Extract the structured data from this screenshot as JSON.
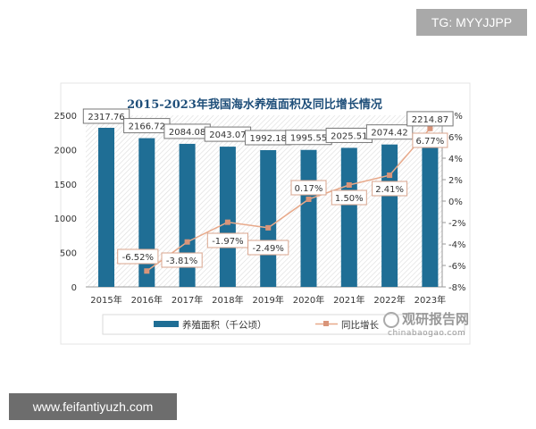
{
  "watermarks": {
    "top_right": "TG: MYYJJPP",
    "bottom_left": "www.feifantiyuzh.com"
  },
  "logo": {
    "name": "观研报告网",
    "url_text": "chinabaogao.com"
  },
  "colors": {
    "bar": "#1f6e95",
    "line": "#e8a98a",
    "marker": "#d9957a",
    "title": "#1f4f7a"
  },
  "chart_data": {
    "type": "bar+line",
    "title": "2015-2023年我国海水养殖面积及同比增长情况",
    "categories": [
      "2015年",
      "2016年",
      "2017年",
      "2018年",
      "2019年",
      "2020年",
      "2021年",
      "2022年",
      "2023年"
    ],
    "series": [
      {
        "name": "养殖面积（千公顷）",
        "type": "bar",
        "axis": "left",
        "values": [
          2317.76,
          2166.72,
          2084.08,
          2043.07,
          1992.18,
          1995.55,
          2025.51,
          2074.42,
          2214.87
        ],
        "labels": [
          "2317.76",
          "2166.72",
          "2084.08",
          "2043.07",
          "1992.18",
          "1995.55",
          "2025.51",
          "2074.42",
          "2214.87"
        ]
      },
      {
        "name": "同比增长",
        "type": "line",
        "axis": "right",
        "values": [
          null,
          -6.52,
          -3.81,
          -1.97,
          -2.49,
          0.17,
          1.5,
          2.41,
          6.77
        ],
        "labels": [
          "",
          "-6.52%",
          "-3.81%",
          "-1.97%",
          "-2.49%",
          "0.17%",
          "1.50%",
          "2.41%",
          "6.77%"
        ]
      }
    ],
    "y_left": {
      "lim": [
        0,
        2500
      ],
      "ticks": [
        "0",
        "500",
        "1000",
        "1500",
        "2000",
        "2500"
      ]
    },
    "y_right": {
      "lim": [
        -8,
        8
      ],
      "ticks": [
        "-8%",
        "-6%",
        "-4%",
        "-2%",
        "0%",
        "2%",
        "4%",
        "6%",
        "8%"
      ]
    },
    "grid": false,
    "legend": "bottom"
  }
}
